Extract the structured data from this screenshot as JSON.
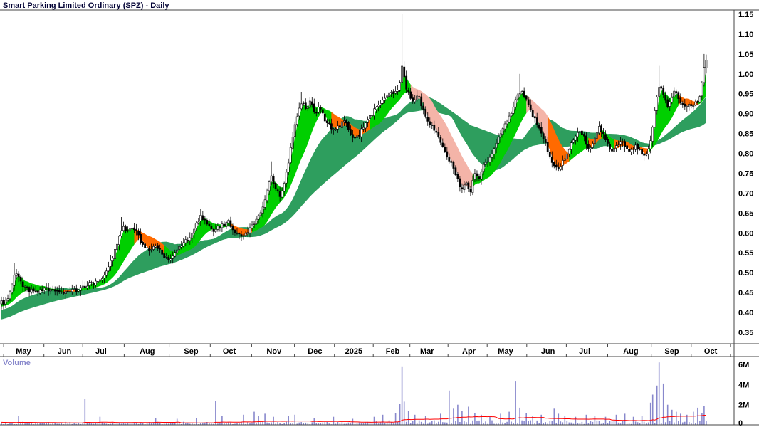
{
  "title": "Smart Parking Limited Ordinary (SPZ) - Daily",
  "volume_label": "Volume",
  "colors": {
    "up": "#ffffff",
    "down": "#000000",
    "wick": "#000000",
    "short_green": "#00cf00",
    "short_orange": "#ff6a00",
    "short_pink": "#f4b4a8",
    "long_green": "#2e9e5e",
    "volume_bar": "#8888cc",
    "volume_ma": "#ff0000",
    "axis_text": "#000000",
    "border": "#444444"
  },
  "chart_data": {
    "type": "candlestick+volume",
    "title": "Smart Parking Limited Ordinary (SPZ) - Daily",
    "symbol": "SPZ",
    "timeframe": "Daily",
    "legend_position": "none",
    "grid": false,
    "bars": 330,
    "extent": 0.962,
    "price_axis": {
      "min": 0.35,
      "max": 1.15,
      "step": 0.05,
      "labels": [
        "1.15",
        "1.10",
        "1.05",
        "1.00",
        "0.95",
        "0.90",
        "0.85",
        "0.80",
        "0.75",
        "0.70",
        "0.65",
        "0.60",
        "0.55",
        "0.50",
        "0.45",
        "0.40",
        "0.35"
      ]
    },
    "x_axis": {
      "months": [
        [
          "May",
          0.03
        ],
        [
          "Jun",
          0.086
        ],
        [
          "Jul",
          0.136
        ],
        [
          "Aug",
          0.199
        ],
        [
          "Sep",
          0.259
        ],
        [
          "Oct",
          0.311
        ],
        [
          "Nov",
          0.372
        ],
        [
          "Dec",
          0.428
        ],
        [
          "2025",
          0.481
        ],
        [
          "Feb",
          0.534
        ],
        [
          "Mar",
          0.581
        ],
        [
          "Apr",
          0.638
        ],
        [
          "May",
          0.688
        ],
        [
          "Jun",
          0.746
        ],
        [
          "Jul",
          0.796
        ],
        [
          "Aug",
          0.859
        ],
        [
          "Sep",
          0.915
        ],
        [
          "Oct",
          0.968
        ]
      ]
    },
    "price_anchors": [
      [
        0.005,
        0.425
      ],
      [
        0.013,
        0.455
      ],
      [
        0.019,
        0.5
      ],
      [
        0.028,
        0.47
      ],
      [
        0.038,
        0.455
      ],
      [
        0.048,
        0.45
      ],
      [
        0.06,
        0.46
      ],
      [
        0.075,
        0.455
      ],
      [
        0.088,
        0.45
      ],
      [
        0.1,
        0.455
      ],
      [
        0.112,
        0.465
      ],
      [
        0.125,
        0.475
      ],
      [
        0.138,
        0.49
      ],
      [
        0.15,
        0.53
      ],
      [
        0.158,
        0.57
      ],
      [
        0.165,
        0.615
      ],
      [
        0.172,
        0.6
      ],
      [
        0.18,
        0.615
      ],
      [
        0.19,
        0.58
      ],
      [
        0.2,
        0.555
      ],
      [
        0.21,
        0.565
      ],
      [
        0.22,
        0.55
      ],
      [
        0.229,
        0.525
      ],
      [
        0.238,
        0.55
      ],
      [
        0.248,
        0.575
      ],
      [
        0.258,
        0.59
      ],
      [
        0.266,
        0.62
      ],
      [
        0.272,
        0.645
      ],
      [
        0.28,
        0.625
      ],
      [
        0.288,
        0.605
      ],
      [
        0.295,
        0.615
      ],
      [
        0.303,
        0.62
      ],
      [
        0.31,
        0.63
      ],
      [
        0.318,
        0.605
      ],
      [
        0.326,
        0.59
      ],
      [
        0.334,
        0.6
      ],
      [
        0.342,
        0.615
      ],
      [
        0.348,
        0.63
      ],
      [
        0.355,
        0.66
      ],
      [
        0.362,
        0.7
      ],
      [
        0.368,
        0.745
      ],
      [
        0.374,
        0.71
      ],
      [
        0.38,
        0.695
      ],
      [
        0.386,
        0.72
      ],
      [
        0.392,
        0.78
      ],
      [
        0.398,
        0.85
      ],
      [
        0.404,
        0.9
      ],
      [
        0.41,
        0.93
      ],
      [
        0.416,
        0.91
      ],
      [
        0.422,
        0.93
      ],
      [
        0.428,
        0.9
      ],
      [
        0.434,
        0.915
      ],
      [
        0.44,
        0.89
      ],
      [
        0.447,
        0.875
      ],
      [
        0.454,
        0.855
      ],
      [
        0.461,
        0.87
      ],
      [
        0.468,
        0.88
      ],
      [
        0.475,
        0.86
      ],
      [
        0.481,
        0.835
      ],
      [
        0.488,
        0.845
      ],
      [
        0.495,
        0.87
      ],
      [
        0.502,
        0.89
      ],
      [
        0.509,
        0.91
      ],
      [
        0.516,
        0.925
      ],
      [
        0.523,
        0.935
      ],
      [
        0.53,
        0.95
      ],
      [
        0.537,
        0.955
      ],
      [
        0.543,
        0.97
      ],
      [
        0.547,
        1.02
      ],
      [
        0.551,
        0.975
      ],
      [
        0.557,
        0.945
      ],
      [
        0.563,
        0.925
      ],
      [
        0.569,
        0.945
      ],
      [
        0.575,
        0.91
      ],
      [
        0.581,
        0.885
      ],
      [
        0.588,
        0.87
      ],
      [
        0.595,
        0.845
      ],
      [
        0.602,
        0.815
      ],
      [
        0.609,
        0.79
      ],
      [
        0.616,
        0.77
      ],
      [
        0.622,
        0.735
      ],
      [
        0.628,
        0.71
      ],
      [
        0.634,
        0.73
      ],
      [
        0.64,
        0.705
      ],
      [
        0.646,
        0.75
      ],
      [
        0.652,
        0.735
      ],
      [
        0.658,
        0.77
      ],
      [
        0.665,
        0.785
      ],
      [
        0.672,
        0.81
      ],
      [
        0.679,
        0.84
      ],
      [
        0.686,
        0.865
      ],
      [
        0.693,
        0.89
      ],
      [
        0.699,
        0.92
      ],
      [
        0.705,
        0.945
      ],
      [
        0.711,
        0.96
      ],
      [
        0.717,
        0.93
      ],
      [
        0.723,
        0.905
      ],
      [
        0.729,
        0.885
      ],
      [
        0.735,
        0.86
      ],
      [
        0.741,
        0.83
      ],
      [
        0.747,
        0.8
      ],
      [
        0.753,
        0.775
      ],
      [
        0.759,
        0.76
      ],
      [
        0.765,
        0.775
      ],
      [
        0.771,
        0.79
      ],
      [
        0.778,
        0.825
      ],
      [
        0.785,
        0.85
      ],
      [
        0.791,
        0.86
      ],
      [
        0.797,
        0.83
      ],
      [
        0.803,
        0.805
      ],
      [
        0.809,
        0.835
      ],
      [
        0.815,
        0.865
      ],
      [
        0.821,
        0.85
      ],
      [
        0.827,
        0.825
      ],
      [
        0.833,
        0.805
      ],
      [
        0.839,
        0.82
      ],
      [
        0.846,
        0.83
      ],
      [
        0.853,
        0.815
      ],
      [
        0.86,
        0.805
      ],
      [
        0.867,
        0.82
      ],
      [
        0.874,
        0.795
      ],
      [
        0.881,
        0.8
      ],
      [
        0.886,
        0.83
      ],
      [
        0.89,
        0.88
      ],
      [
        0.894,
        0.93
      ],
      [
        0.898,
        0.975
      ],
      [
        0.903,
        0.95
      ],
      [
        0.909,
        0.92
      ],
      [
        0.914,
        0.94
      ],
      [
        0.919,
        0.955
      ],
      [
        0.925,
        0.935
      ],
      [
        0.933,
        0.915
      ],
      [
        0.94,
        0.92
      ],
      [
        0.948,
        0.925
      ],
      [
        0.954,
        0.94
      ],
      [
        0.96,
        1.03
      ]
    ],
    "price_spikes": [
      [
        0.019,
        0.525
      ],
      [
        0.165,
        0.64
      ],
      [
        0.272,
        0.66
      ],
      [
        0.368,
        0.78
      ],
      [
        0.41,
        0.955
      ],
      [
        0.547,
        1.15
      ],
      [
        0.708,
        1.0
      ],
      [
        0.898,
        1.02
      ],
      [
        0.96,
        1.05
      ]
    ],
    "ribbons": {
      "short": {
        "periods": [
          3,
          5,
          8,
          10,
          12,
          15
        ],
        "segments": [
          [
            0.0,
            0.088,
            "g"
          ],
          [
            0.088,
            0.106,
            "o"
          ],
          [
            0.106,
            0.185,
            "g"
          ],
          [
            0.185,
            0.225,
            "o"
          ],
          [
            0.225,
            0.315,
            "g"
          ],
          [
            0.315,
            0.345,
            "o"
          ],
          [
            0.345,
            0.452,
            "g"
          ],
          [
            0.452,
            0.506,
            "o"
          ],
          [
            0.506,
            0.562,
            "g"
          ],
          [
            0.562,
            0.645,
            "p"
          ],
          [
            0.645,
            0.718,
            "g"
          ],
          [
            0.718,
            0.748,
            "p"
          ],
          [
            0.748,
            0.777,
            "o"
          ],
          [
            0.777,
            0.803,
            "g"
          ],
          [
            0.803,
            0.822,
            "o"
          ],
          [
            0.822,
            0.838,
            "g"
          ],
          [
            0.838,
            0.885,
            "o"
          ],
          [
            0.885,
            0.928,
            "g"
          ],
          [
            0.928,
            0.952,
            "o"
          ],
          [
            0.952,
            0.962,
            "g"
          ]
        ]
      },
      "long": {
        "periods": [
          25,
          30,
          35,
          40,
          45,
          55
        ]
      }
    },
    "volume_axis": {
      "labels": [
        [
          "6M",
          6
        ],
        [
          "4M",
          4
        ],
        [
          "2M",
          2
        ],
        [
          "0",
          0
        ]
      ],
      "max": 6.5
    },
    "volume_spikes": [
      [
        0.022,
        0.9
      ],
      [
        0.115,
        2.6
      ],
      [
        0.135,
        0.8
      ],
      [
        0.21,
        0.7
      ],
      [
        0.24,
        0.6
      ],
      [
        0.265,
        0.7
      ],
      [
        0.292,
        2.4
      ],
      [
        0.3,
        0.9
      ],
      [
        0.33,
        1.0
      ],
      [
        0.345,
        1.3
      ],
      [
        0.352,
        0.9
      ],
      [
        0.36,
        1.1
      ],
      [
        0.37,
        0.8
      ],
      [
        0.392,
        0.9
      ],
      [
        0.4,
        1.0
      ],
      [
        0.428,
        0.7
      ],
      [
        0.452,
        0.8
      ],
      [
        0.48,
        0.6
      ],
      [
        0.508,
        0.8
      ],
      [
        0.52,
        1.0
      ],
      [
        0.537,
        1.2
      ],
      [
        0.543,
        2.1
      ],
      [
        0.547,
        5.8
      ],
      [
        0.551,
        2.3
      ],
      [
        0.556,
        1.4
      ],
      [
        0.565,
        1.0
      ],
      [
        0.58,
        0.9
      ],
      [
        0.6,
        1.1
      ],
      [
        0.61,
        3.4
      ],
      [
        0.617,
        1.6
      ],
      [
        0.624,
        2.0
      ],
      [
        0.63,
        1.4
      ],
      [
        0.638,
        1.8
      ],
      [
        0.645,
        1.2
      ],
      [
        0.655,
        1.0
      ],
      [
        0.668,
        0.9
      ],
      [
        0.68,
        1.1
      ],
      [
        0.693,
        1.3
      ],
      [
        0.702,
        4.3
      ],
      [
        0.708,
        1.7
      ],
      [
        0.715,
        1.2
      ],
      [
        0.724,
        0.9
      ],
      [
        0.738,
        1.0
      ],
      [
        0.753,
        1.6
      ],
      [
        0.76,
        1.1
      ],
      [
        0.77,
        0.9
      ],
      [
        0.785,
        0.8
      ],
      [
        0.797,
        1.0
      ],
      [
        0.81,
        0.9
      ],
      [
        0.825,
        0.8
      ],
      [
        0.84,
        1.0
      ],
      [
        0.852,
        1.1
      ],
      [
        0.862,
        0.8
      ],
      [
        0.875,
        0.9
      ],
      [
        0.886,
        2.2
      ],
      [
        0.89,
        3.0
      ],
      [
        0.894,
        3.9
      ],
      [
        0.898,
        6.2
      ],
      [
        0.903,
        4.1
      ],
      [
        0.908,
        2.0
      ],
      [
        0.914,
        1.5
      ],
      [
        0.92,
        1.3
      ],
      [
        0.928,
        1.1
      ],
      [
        0.936,
        1.0
      ],
      [
        0.944,
        1.3
      ],
      [
        0.95,
        1.7
      ],
      [
        0.956,
        1.2
      ],
      [
        0.96,
        1.9
      ]
    ]
  }
}
